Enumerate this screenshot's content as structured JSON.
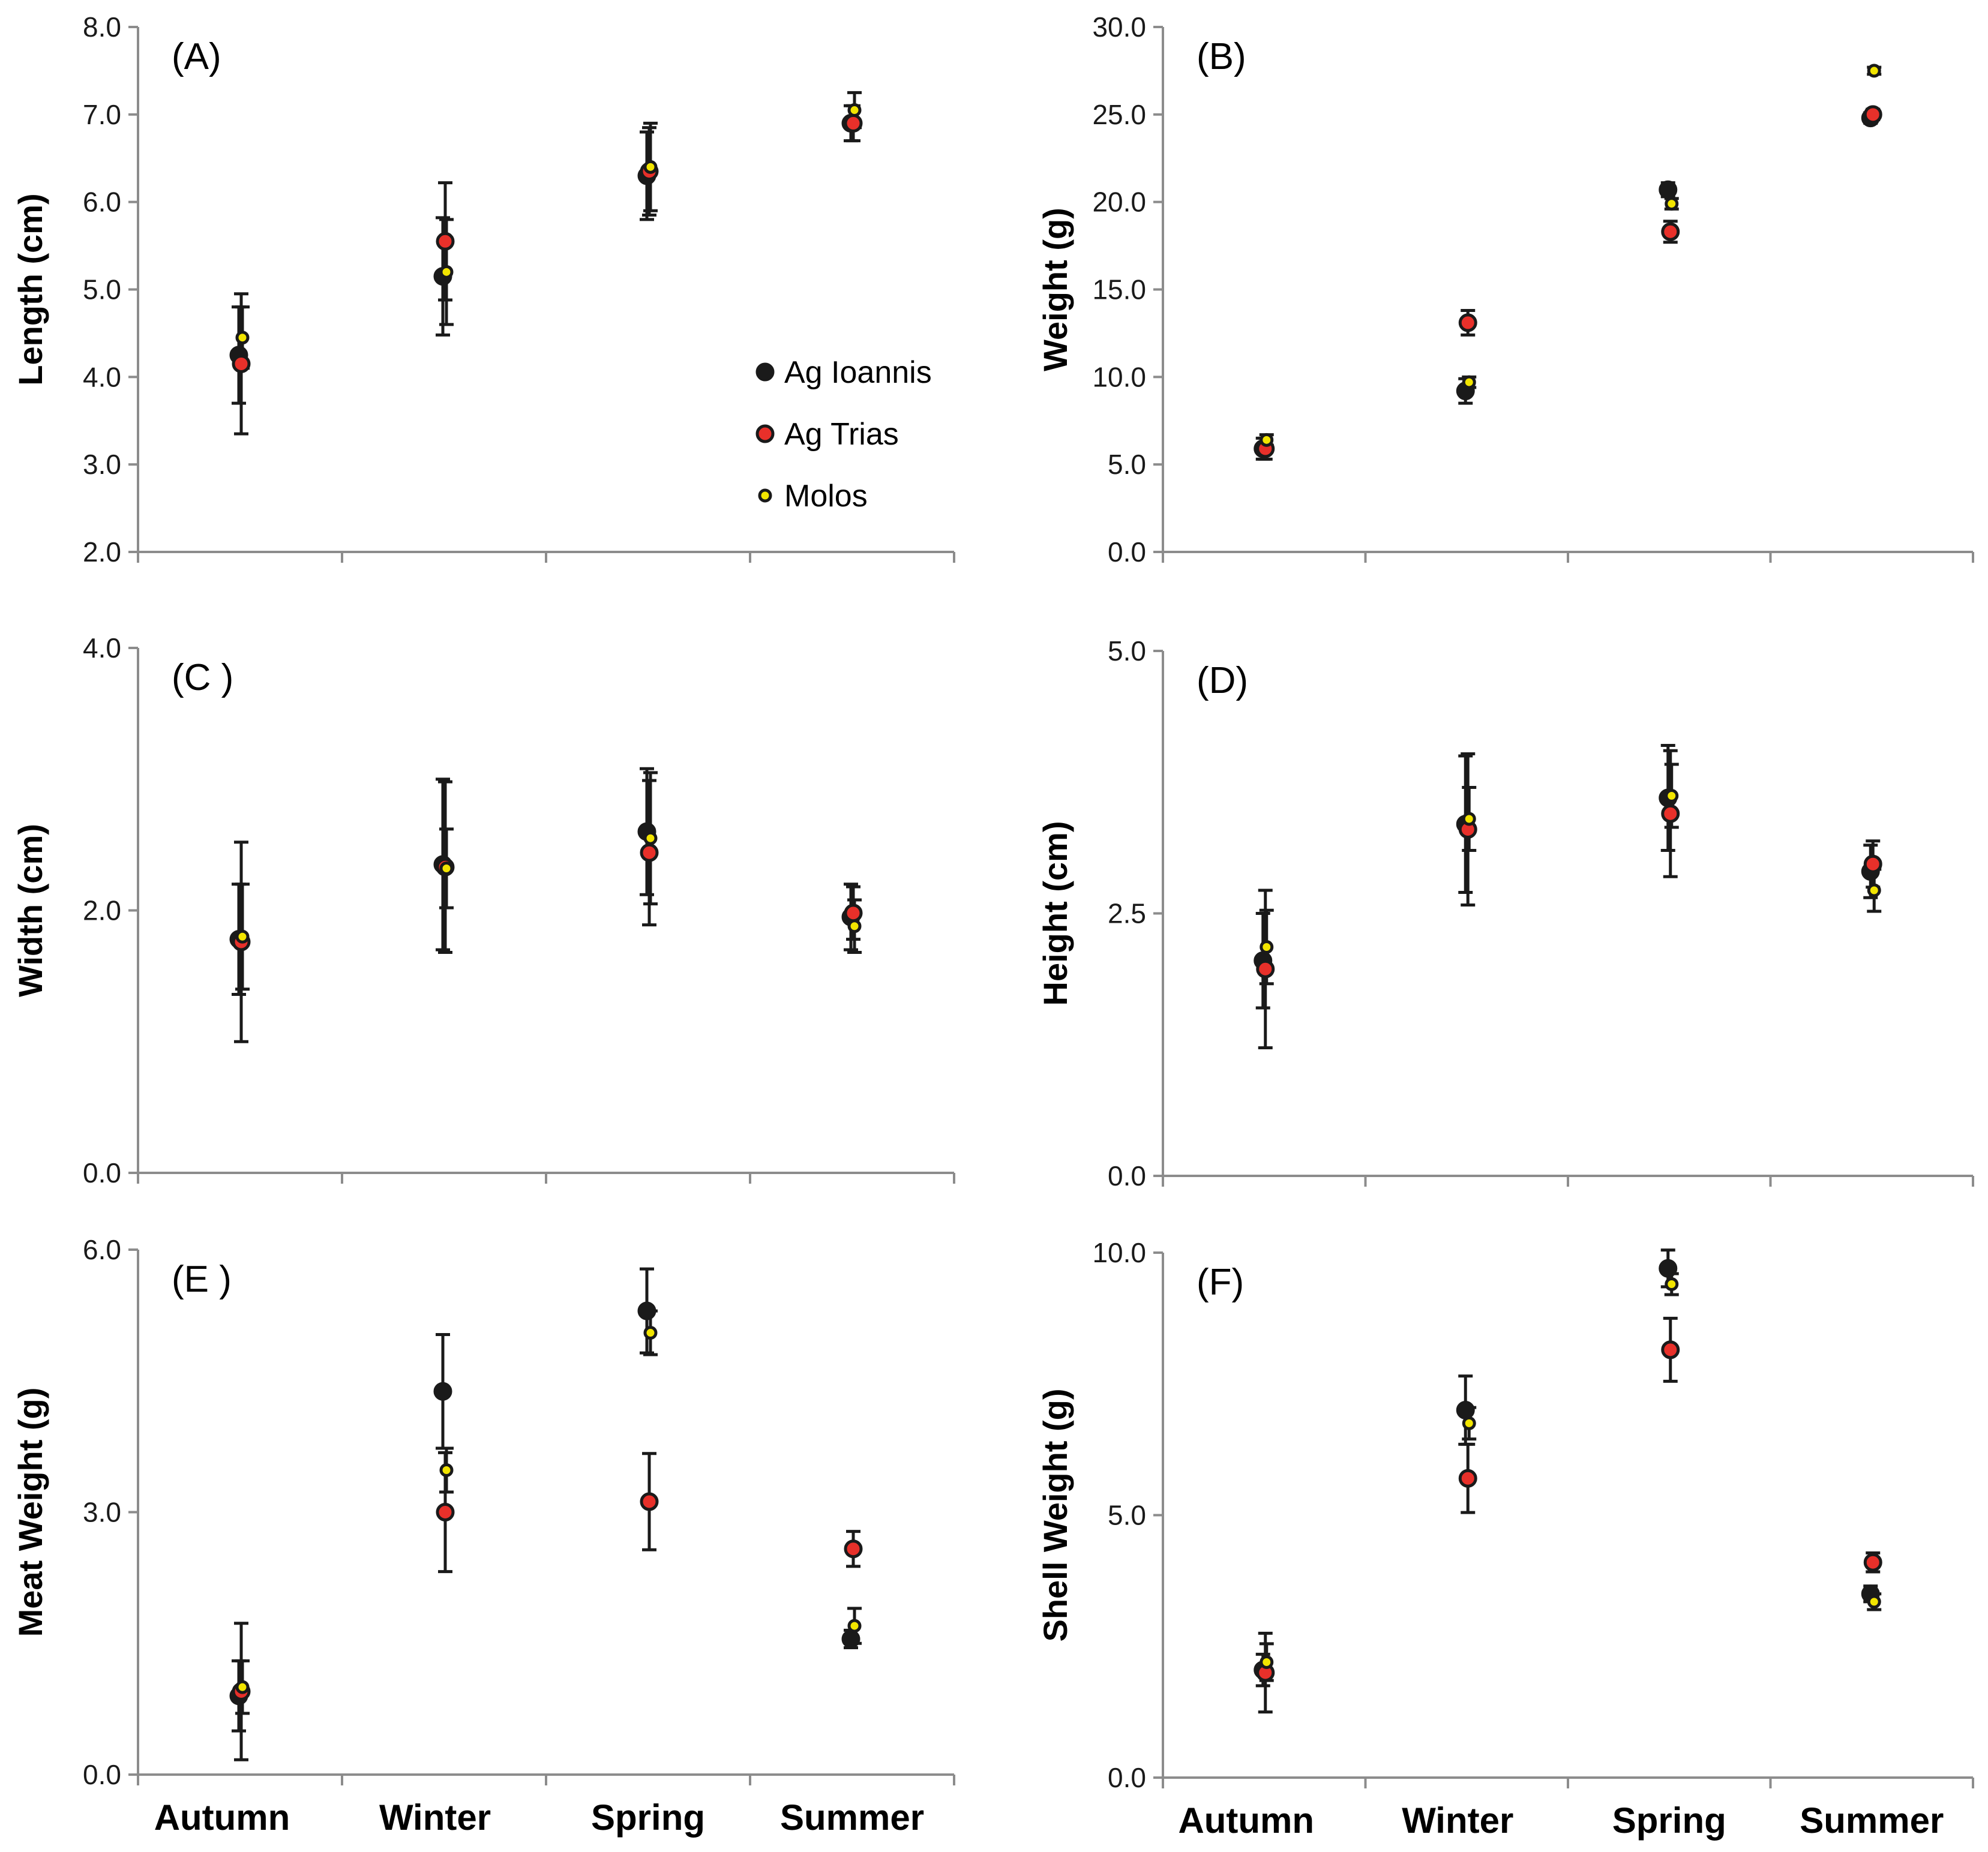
{
  "colors": {
    "Ag Ioannis": "#1a1a1a",
    "Ag Trias": "#e8302a",
    "Molos": "#f2e500",
    "axis": "#8c8c8c"
  },
  "legend": [
    {
      "name": "Ag Ioannis",
      "color": "#1a1a1a"
    },
    {
      "name": "Ag Trias",
      "color": "#e8302a"
    },
    {
      "name": "Molos",
      "color": "#f2e500"
    }
  ],
  "chart_data": [
    {
      "type": "scatter",
      "panel": "(A)",
      "ylabel": "Length (cm)",
      "ylim": [
        2.0,
        8.0
      ],
      "yticks": [
        "2.0",
        "3.0",
        "4.0",
        "5.0",
        "6.0",
        "7.0",
        "8.0"
      ],
      "categories": [
        "Autumn",
        "Winter",
        "Spring",
        "Summer"
      ],
      "show_xlabels": false,
      "show_legend": true,
      "series": [
        {
          "name": "Ag Ioannis",
          "values": [
            4.25,
            5.15,
            6.3,
            6.9
          ],
          "errors": [
            0.55,
            0.67,
            0.5,
            0.2
          ]
        },
        {
          "name": "Ag Trias",
          "values": [
            4.15,
            5.55,
            6.35,
            6.9
          ],
          "errors": [
            0.8,
            0.67,
            0.5,
            0.2
          ]
        },
        {
          "name": "Molos",
          "values": [
            4.45,
            5.2,
            6.4,
            7.05
          ],
          "errors": [
            0.35,
            0.6,
            0.5,
            0.2
          ]
        }
      ]
    },
    {
      "type": "scatter",
      "panel": "(B)",
      "ylabel": "Weight (g)",
      "ylim": [
        0.0,
        30.0
      ],
      "yticks": [
        "0.0",
        "5.0",
        "10.0",
        "15.0",
        "20.0",
        "25.0",
        "30.0"
      ],
      "categories": [
        "Autumn",
        "Winter",
        "Spring",
        "Summer"
      ],
      "show_xlabels": false,
      "show_legend": false,
      "series": [
        {
          "name": "Ag Ioannis",
          "values": [
            5.9,
            9.2,
            20.7,
            24.8
          ],
          "errors": [
            0.6,
            0.7,
            0.4,
            0.3
          ]
        },
        {
          "name": "Ag Trias",
          "values": [
            5.9,
            13.1,
            18.3,
            25.0
          ],
          "errors": [
            0.6,
            0.7,
            0.6,
            0.3
          ]
        },
        {
          "name": "Molos",
          "values": [
            6.4,
            9.7,
            19.9,
            27.5
          ],
          "errors": [
            0.3,
            0.3,
            0.3,
            0.2
          ]
        }
      ]
    },
    {
      "type": "scatter",
      "panel": "(C )",
      "ylabel": "Width (cm)",
      "ylim": [
        0.0,
        4.0
      ],
      "yticks": [
        "0.0",
        "2.0",
        "4.0"
      ],
      "categories": [
        "Autumn",
        "Winter",
        "Spring",
        "Summer"
      ],
      "show_xlabels": false,
      "show_legend": false,
      "series": [
        {
          "name": "Ag Ioannis",
          "values": [
            1.78,
            2.35,
            2.6,
            1.95
          ],
          "errors": [
            0.42,
            0.65,
            0.48,
            0.25
          ]
        },
        {
          "name": "Ag Trias",
          "values": [
            1.76,
            2.33,
            2.44,
            1.98
          ],
          "errors": [
            0.76,
            0.65,
            0.55,
            0.2
          ]
        },
        {
          "name": "Molos",
          "values": [
            1.8,
            2.32,
            2.55,
            1.88
          ],
          "errors": [
            0.4,
            0.3,
            0.5,
            0.2
          ]
        }
      ]
    },
    {
      "type": "scatter",
      "panel": "(D)",
      "ylabel": "Height (cm)",
      "ylim": [
        0.0,
        5.0
      ],
      "yticks": [
        "0.0",
        "2.5",
        "5.0"
      ],
      "categories": [
        "Autumn",
        "Winter",
        "Spring",
        "Summer"
      ],
      "show_xlabels": false,
      "show_legend": false,
      "series": [
        {
          "name": "Ag Ioannis",
          "values": [
            2.05,
            3.35,
            3.6,
            2.9
          ],
          "errors": [
            0.45,
            0.65,
            0.5,
            0.25
          ]
        },
        {
          "name": "Ag Trias",
          "values": [
            1.97,
            3.3,
            3.45,
            2.97
          ],
          "errors": [
            0.75,
            0.72,
            0.6,
            0.22
          ]
        },
        {
          "name": "Molos",
          "values": [
            2.18,
            3.4,
            3.62,
            2.72
          ],
          "errors": [
            0.35,
            0.3,
            0.3,
            0.2
          ]
        }
      ]
    },
    {
      "type": "scatter",
      "panel": "(E )",
      "ylabel": "Meat Weight (g)",
      "ylim": [
        0.0,
        6.0
      ],
      "yticks": [
        "0.0",
        "3.0",
        "6.0"
      ],
      "categories": [
        "Autumn",
        "Winter",
        "Spring",
        "Summer"
      ],
      "show_xlabels": true,
      "show_legend": false,
      "series": [
        {
          "name": "Ag Ioannis",
          "values": [
            0.9,
            4.38,
            5.3,
            1.55
          ],
          "errors": [
            0.4,
            0.65,
            0.48,
            0.1
          ]
        },
        {
          "name": "Ag Trias",
          "values": [
            0.95,
            3.0,
            3.12,
            2.58
          ],
          "errors": [
            0.78,
            0.68,
            0.55,
            0.2
          ]
        },
        {
          "name": "Molos",
          "values": [
            1.0,
            3.48,
            5.05,
            1.7
          ],
          "errors": [
            0.3,
            0.25,
            0.25,
            0.2
          ]
        }
      ]
    },
    {
      "type": "scatter",
      "panel": "(F)",
      "ylabel": "Shell Weight (g)",
      "ylim": [
        0.0,
        10.0
      ],
      "yticks": [
        "0.0",
        "5.0",
        "10.0"
      ],
      "categories": [
        "Autumn",
        "Winter",
        "Spring",
        "Summer"
      ],
      "show_xlabels": true,
      "show_legend": false,
      "series": [
        {
          "name": "Ag Ioannis",
          "values": [
            2.05,
            7.0,
            9.7,
            3.5
          ],
          "errors": [
            0.3,
            0.65,
            0.35,
            0.15
          ]
        },
        {
          "name": "Ag Trias",
          "values": [
            2.0,
            5.7,
            8.15,
            4.1
          ],
          "errors": [
            0.75,
            0.65,
            0.6,
            0.18
          ]
        },
        {
          "name": "Molos",
          "values": [
            2.2,
            6.75,
            9.4,
            3.35
          ],
          "errors": [
            0.35,
            0.3,
            0.2,
            0.15
          ]
        }
      ]
    }
  ]
}
